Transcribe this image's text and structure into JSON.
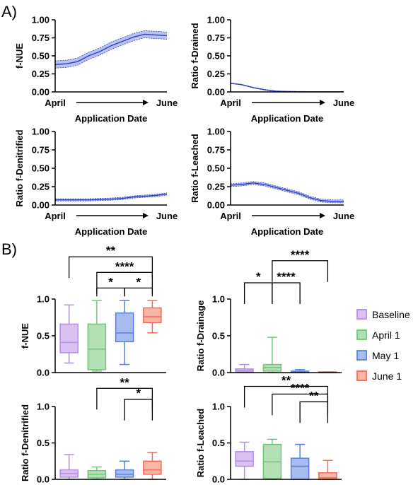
{
  "panels": {
    "a": "A)",
    "b": "B)"
  },
  "colors": {
    "line": "#2f3fbf",
    "band": "#b9c1f3",
    "baseline": "#b98ce6",
    "april": "#76c47a",
    "may": "#5a7fe0",
    "june": "#f26b55"
  },
  "line_x": {
    "start": "April",
    "end": "June",
    "label": "Application Date"
  },
  "legend": [
    "Baseline",
    "April 1",
    "May 1",
    "June 1"
  ],
  "chart_data": [
    {
      "type": "area",
      "ylabel": "f-NUE",
      "ylim": [
        0,
        1.0
      ],
      "yticks": [
        "0.00",
        "0.25",
        "0.50",
        "0.75",
        "1.00"
      ],
      "x": [
        0,
        0.1,
        0.2,
        0.3,
        0.4,
        0.5,
        0.6,
        0.7,
        0.8,
        0.9,
        1.0
      ],
      "y": [
        0.38,
        0.39,
        0.42,
        0.5,
        0.56,
        0.64,
        0.7,
        0.76,
        0.8,
        0.79,
        0.78
      ],
      "band": 0.05
    },
    {
      "type": "line",
      "ylabel": "Ratio f-Drained",
      "ylim": [
        0,
        1.0
      ],
      "yticks": [
        "0.00",
        "0.25",
        "0.50",
        "0.75",
        "1.00"
      ],
      "x": [
        0,
        0.1,
        0.2,
        0.3,
        0.4,
        0.5,
        0.6,
        0.7,
        0.8,
        0.9,
        1.0
      ],
      "y": [
        0.12,
        0.1,
        0.06,
        0.03,
        0.01,
        0.005,
        0.003,
        0.002,
        0.002,
        0.002,
        0.002
      ],
      "band": 0.004
    },
    {
      "type": "area",
      "ylabel": "Ratio f-Denitrified",
      "ylim": [
        0,
        1.0
      ],
      "yticks": [
        "0.00",
        "0.25",
        "0.50",
        "0.75",
        "1.00"
      ],
      "x": [
        0,
        0.1,
        0.2,
        0.3,
        0.4,
        0.5,
        0.6,
        0.7,
        0.8,
        0.9,
        1.0
      ],
      "y": [
        0.07,
        0.07,
        0.07,
        0.07,
        0.075,
        0.08,
        0.09,
        0.11,
        0.12,
        0.13,
        0.15
      ],
      "band": 0.015
    },
    {
      "type": "area",
      "ylabel": "Ratio f-Leached",
      "ylim": [
        0,
        1.0
      ],
      "yticks": [
        "0.00",
        "0.25",
        "0.50",
        "0.75",
        "1.00"
      ],
      "x": [
        0,
        0.1,
        0.2,
        0.3,
        0.4,
        0.5,
        0.6,
        0.7,
        0.8,
        0.9,
        1.0
      ],
      "y": [
        0.27,
        0.28,
        0.3,
        0.28,
        0.24,
        0.2,
        0.16,
        0.1,
        0.06,
        0.05,
        0.05
      ],
      "band": 0.02
    },
    {
      "type": "box",
      "ylabel": "f-NUE",
      "ylim": [
        0,
        1.0
      ],
      "yticks": [
        "0.0",
        "0.5",
        "1.0"
      ],
      "boxes": [
        {
          "min": 0.13,
          "q1": 0.27,
          "median": 0.41,
          "q3": 0.66,
          "max": 0.92
        },
        {
          "min": 0.02,
          "q1": 0.04,
          "median": 0.32,
          "q3": 0.66,
          "max": 0.98
        },
        {
          "min": 0.11,
          "q1": 0.42,
          "median": 0.54,
          "q3": 0.81,
          "max": 0.98
        },
        {
          "min": 0.54,
          "q1": 0.68,
          "median": 0.76,
          "q3": 0.88,
          "max": 0.98
        }
      ],
      "brackets": [
        {
          "from": 0,
          "to": 3,
          "label": "**",
          "level": 3
        },
        {
          "from": 1,
          "to": 3,
          "label": "****",
          "level": 2
        },
        {
          "from": 1,
          "to": 2,
          "label": "*",
          "level": 1
        },
        {
          "from": 2,
          "to": 3,
          "label": "*",
          "level": 1
        }
      ]
    },
    {
      "type": "box",
      "ylabel": "Ratio f-Drainage",
      "ylim": [
        0,
        1.0
      ],
      "yticks": [
        "0.0",
        "0.5",
        "1.0"
      ],
      "boxes": [
        {
          "min": 0.0,
          "q1": 0.01,
          "median": 0.03,
          "q3": 0.05,
          "max": 0.11
        },
        {
          "min": 0.0,
          "q1": 0.02,
          "median": 0.07,
          "q3": 0.11,
          "max": 0.48
        },
        {
          "min": 0.0,
          "q1": 0.0,
          "median": 0.01,
          "q3": 0.02,
          "max": 0.04
        },
        {
          "min": 0.0,
          "q1": 0.0,
          "median": 0.0,
          "q3": 0.01,
          "max": 0.01
        }
      ],
      "brackets": [
        {
          "from": 1,
          "to": 3,
          "label": "****",
          "level": 2
        },
        {
          "from": 0,
          "to": 1,
          "label": "*",
          "level": 1
        },
        {
          "from": 1,
          "to": 2,
          "label": "****",
          "level": 1
        }
      ]
    },
    {
      "type": "box",
      "ylabel": "Ratio f-Denitrified",
      "ylim": [
        0,
        1.0
      ],
      "yticks": [
        "0.0",
        "0.5",
        "1.0"
      ],
      "boxes": [
        {
          "min": 0.0,
          "q1": 0.03,
          "median": 0.08,
          "q3": 0.13,
          "max": 0.34
        },
        {
          "min": 0.0,
          "q1": 0.02,
          "median": 0.07,
          "q3": 0.12,
          "max": 0.17
        },
        {
          "min": 0.0,
          "q1": 0.03,
          "median": 0.07,
          "q3": 0.13,
          "max": 0.25
        },
        {
          "min": 0.0,
          "q1": 0.07,
          "median": 0.13,
          "q3": 0.25,
          "max": 0.37
        }
      ],
      "brackets": [
        {
          "from": 1,
          "to": 3,
          "label": "**",
          "level": 2
        },
        {
          "from": 2,
          "to": 3,
          "label": "*",
          "level": 1
        }
      ]
    },
    {
      "type": "box",
      "ylabel": "Ratio f-Leached",
      "ylim": [
        0,
        1.0
      ],
      "yticks": [
        "0.0",
        "0.5",
        "1.0"
      ],
      "boxes": [
        {
          "min": 0.0,
          "q1": 0.18,
          "median": 0.25,
          "q3": 0.38,
          "max": 0.51
        },
        {
          "min": 0.0,
          "q1": 0.01,
          "median": 0.24,
          "q3": 0.48,
          "max": 0.55
        },
        {
          "min": 0.0,
          "q1": 0.0,
          "median": 0.18,
          "q3": 0.29,
          "max": 0.48
        },
        {
          "min": 0.0,
          "q1": 0.0,
          "median": 0.02,
          "q3": 0.09,
          "max": 0.26
        }
      ],
      "brackets": [
        {
          "from": 0,
          "to": 3,
          "label": "**",
          "level": 3
        },
        {
          "from": 1,
          "to": 3,
          "label": "****",
          "level": 2
        },
        {
          "from": 2,
          "to": 3,
          "label": "**",
          "level": 1
        }
      ]
    }
  ]
}
